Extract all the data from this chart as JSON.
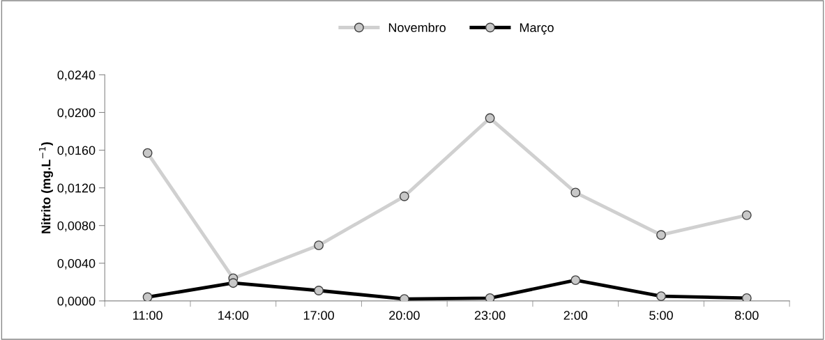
{
  "chart_data": {
    "type": "line",
    "ylabel": "Nitrito (mg.L$^{−1}$)",
    "categories": [
      "11:00",
      "14:00",
      "17:00",
      "20:00",
      "23:00",
      "2:00",
      "5:00",
      "8:00"
    ],
    "series": [
      {
        "name": "Novembro",
        "color": "#d0d0d0",
        "values": [
          0.0157,
          0.0024,
          0.0059,
          0.0111,
          0.0194,
          0.0115,
          0.007,
          0.0091
        ]
      },
      {
        "name": "Março",
        "color": "#000000",
        "values": [
          0.0004,
          0.0019,
          0.0011,
          0.0002,
          0.0003,
          0.0022,
          0.0005,
          0.0003
        ]
      }
    ],
    "ylim": [
      0,
      0.024
    ],
    "yticks": [
      {
        "value": 0,
        "label": "0,0000"
      },
      {
        "value": 0.004,
        "label": "0,0040"
      },
      {
        "value": 0.008,
        "label": "0,0080"
      },
      {
        "value": 0.012,
        "label": "0,0120"
      },
      {
        "value": 0.016,
        "label": "0,0160"
      },
      {
        "value": 0.02,
        "label": "0,0200"
      },
      {
        "value": 0.024,
        "label": "0,0240"
      }
    ],
    "grid": false,
    "legend": "top",
    "marker": "circle",
    "line_style": "solid"
  }
}
